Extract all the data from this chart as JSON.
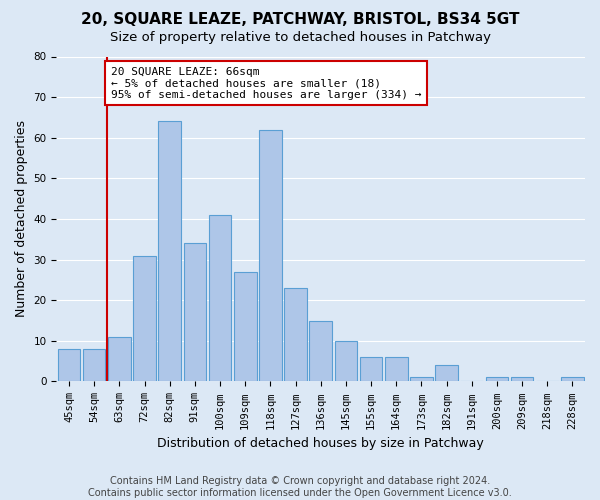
{
  "title": "20, SQUARE LEAZE, PATCHWAY, BRISTOL, BS34 5GT",
  "subtitle": "Size of property relative to detached houses in Patchway",
  "xlabel": "Distribution of detached houses by size in Patchway",
  "ylabel": "Number of detached properties",
  "categories": [
    "45sqm",
    "54sqm",
    "63sqm",
    "72sqm",
    "82sqm",
    "91sqm",
    "100sqm",
    "109sqm",
    "118sqm",
    "127sqm",
    "136sqm",
    "145sqm",
    "155sqm",
    "164sqm",
    "173sqm",
    "182sqm",
    "191sqm",
    "200sqm",
    "209sqm",
    "218sqm",
    "228sqm"
  ],
  "values": [
    8,
    8,
    11,
    31,
    64,
    34,
    41,
    27,
    62,
    23,
    15,
    10,
    6,
    6,
    1,
    4,
    0,
    1,
    1,
    0,
    1
  ],
  "bar_color": "#aec6e8",
  "bar_edge_color": "#5a9fd4",
  "vline_x_index": 2,
  "vline_color": "#cc0000",
  "ylim_min": 0,
  "ylim_max": 80,
  "yticks": [
    0,
    10,
    20,
    30,
    40,
    50,
    60,
    70,
    80
  ],
  "annotation_text": "20 SQUARE LEAZE: 66sqm\n← 5% of detached houses are smaller (18)\n95% of semi-detached houses are larger (334) →",
  "annotation_box_color": "#ffffff",
  "annotation_box_edge": "#cc0000",
  "footer_line1": "Contains HM Land Registry data © Crown copyright and database right 2024.",
  "footer_line2": "Contains public sector information licensed under the Open Government Licence v3.0.",
  "background_color": "#dce8f5",
  "grid_color": "#ffffff",
  "title_fontsize": 11,
  "subtitle_fontsize": 9.5,
  "tick_fontsize": 7.5,
  "ylabel_fontsize": 9,
  "xlabel_fontsize": 9,
  "footer_fontsize": 7,
  "annotation_fontsize": 8
}
